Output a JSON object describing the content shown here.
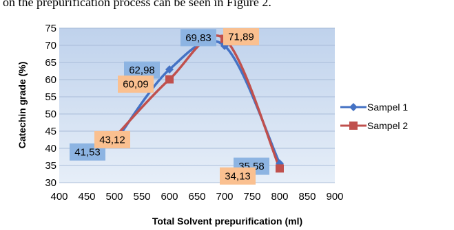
{
  "caption": "on the prepurification process can be seen in Figure 2.",
  "chart_data": {
    "type": "line",
    "xlabel": "Total Solvent  prepurification (ml)",
    "ylabel": "Catechin grade (%)",
    "xlim": [
      400,
      900
    ],
    "ylim": [
      30,
      75
    ],
    "x_ticks": [
      400,
      450,
      500,
      550,
      600,
      650,
      700,
      750,
      800,
      850,
      900
    ],
    "y_ticks": [
      30,
      35,
      40,
      45,
      50,
      55,
      60,
      65,
      70,
      75
    ],
    "grid": true,
    "legend_position": "right",
    "series": [
      {
        "name": "Sampel 1",
        "color": "#4472C4",
        "marker": "diamond",
        "x": [
          500,
          600,
          700,
          800
        ],
        "values": [
          41.53,
          62.98,
          69.83,
          35.58
        ],
        "labels": [
          "41,53",
          "62,98",
          "69,83",
          "35,58"
        ],
        "label_color": "#8DB4E2"
      },
      {
        "name": "Sampel 2",
        "color": "#C0504D",
        "marker": "square",
        "x": [
          500,
          600,
          700,
          800
        ],
        "values": [
          43.12,
          60.09,
          71.89,
          34.13
        ],
        "labels": [
          "43,12",
          "60,09",
          "71,89",
          "34,13"
        ],
        "label_color": "#FAC090"
      }
    ]
  }
}
